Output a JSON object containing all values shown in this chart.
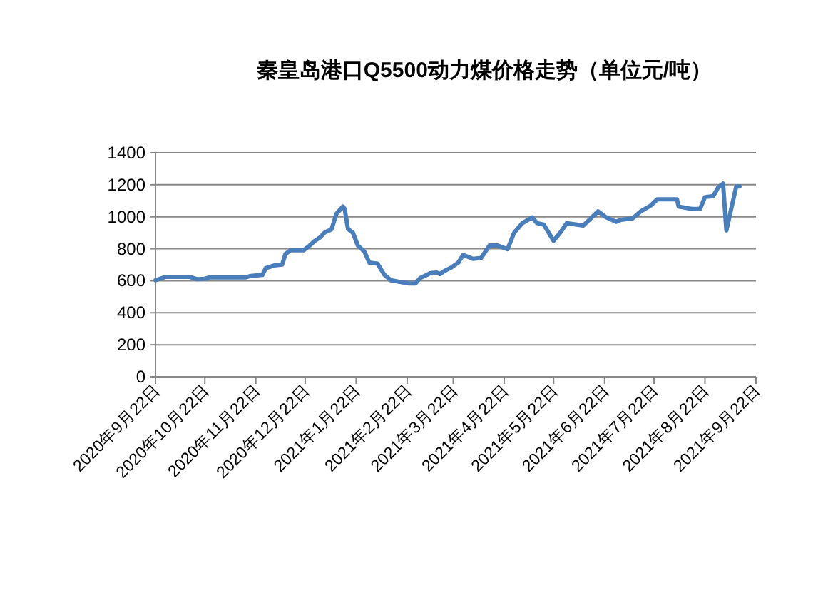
{
  "chart_data": {
    "type": "line",
    "title": "秦皇岛港口Q5500动力煤价格走势（单位元/吨）",
    "x": [
      "2020-09-22",
      "2020-09-28",
      "2020-10-13",
      "2020-10-17",
      "2020-10-22",
      "2020-10-25",
      "2020-11-16",
      "2020-11-19",
      "2020-11-26",
      "2020-11-28",
      "2020-12-03",
      "2020-12-08",
      "2020-12-10",
      "2020-12-13",
      "2020-12-21",
      "2020-12-24",
      "2020-12-28",
      "2020-12-31",
      "2021-01-03",
      "2021-01-07",
      "2021-01-10",
      "2021-01-14",
      "2021-01-15",
      "2021-01-17",
      "2021-01-20",
      "2021-01-23",
      "2021-01-27",
      "2021-01-30",
      "2021-02-04",
      "2021-02-08",
      "2021-02-12",
      "2021-02-20",
      "2021-02-23",
      "2021-02-27",
      "2021-03-02",
      "2021-03-06",
      "2021-03-08",
      "2021-03-12",
      "2021-03-14",
      "2021-03-17",
      "2021-03-21",
      "2021-03-25",
      "2021-03-28",
      "2021-04-03",
      "2021-04-08",
      "2021-04-13",
      "2021-04-18",
      "2021-04-24",
      "2021-04-28",
      "2021-05-03",
      "2021-05-09",
      "2021-05-12",
      "2021-05-16",
      "2021-05-22",
      "2021-05-26",
      "2021-05-30",
      "2021-06-09",
      "2021-06-18",
      "2021-06-23",
      "2021-06-29",
      "2021-07-02",
      "2021-07-09",
      "2021-07-14",
      "2021-07-20",
      "2021-07-24",
      "2021-08-05",
      "2021-08-06",
      "2021-08-14",
      "2021-08-19",
      "2021-08-22",
      "2021-08-27",
      "2021-08-30",
      "2021-09-02",
      "2021-09-04",
      "2021-09-10",
      "2021-09-12"
    ],
    "series": [
      {
        "color": "#4a7ebb",
        "values": [
          603,
          624,
          624,
          610,
          612,
          621,
          621,
          630,
          636,
          678,
          695,
          701,
          767,
          790,
          790,
          814,
          850,
          871,
          903,
          921,
          1019,
          1064,
          1049,
          924,
          900,
          820,
          782,
          713,
          707,
          639,
          603,
          588,
          583,
          583,
          618,
          636,
          648,
          651,
          642,
          663,
          684,
          713,
          761,
          737,
          743,
          820,
          820,
          797,
          900,
          960,
          996,
          960,
          951,
          850,
          900,
          960,
          945,
          1034,
          996,
          969,
          981,
          990,
          1034,
          1070,
          1109,
          1109,
          1064,
          1049,
          1049,
          1123,
          1129,
          1183,
          1207,
          915,
          1189,
          1189
        ]
      }
    ],
    "xlim": [
      "2020-09-22",
      "2021-09-22"
    ],
    "xticks": [
      {
        "value": "2020-09-22",
        "label": "2020年9月22日"
      },
      {
        "value": "2020-10-22",
        "label": "2020年10月22日"
      },
      {
        "value": "2020-11-22",
        "label": "2020年11月22日"
      },
      {
        "value": "2020-12-22",
        "label": "2020年12月22日"
      },
      {
        "value": "2021-01-22",
        "label": "2021年1月22日"
      },
      {
        "value": "2021-02-22",
        "label": "2021年2月22日"
      },
      {
        "value": "2021-03-22",
        "label": "2021年3月22日"
      },
      {
        "value": "2021-04-22",
        "label": "2021年4月22日"
      },
      {
        "value": "2021-05-22",
        "label": "2021年5月22日"
      },
      {
        "value": "2021-06-22",
        "label": "2021年6月22日"
      },
      {
        "value": "2021-07-22",
        "label": "2021年7月22日"
      },
      {
        "value": "2021-08-22",
        "label": "2021年8月22日"
      },
      {
        "value": "2021-09-22",
        "label": "2021年9月22日"
      }
    ],
    "ylim": [
      0,
      1400
    ],
    "yticks": [
      0,
      200,
      400,
      600,
      800,
      1000,
      1200,
      1400
    ],
    "grid": "y",
    "marker": "none",
    "line_style": "solid"
  }
}
